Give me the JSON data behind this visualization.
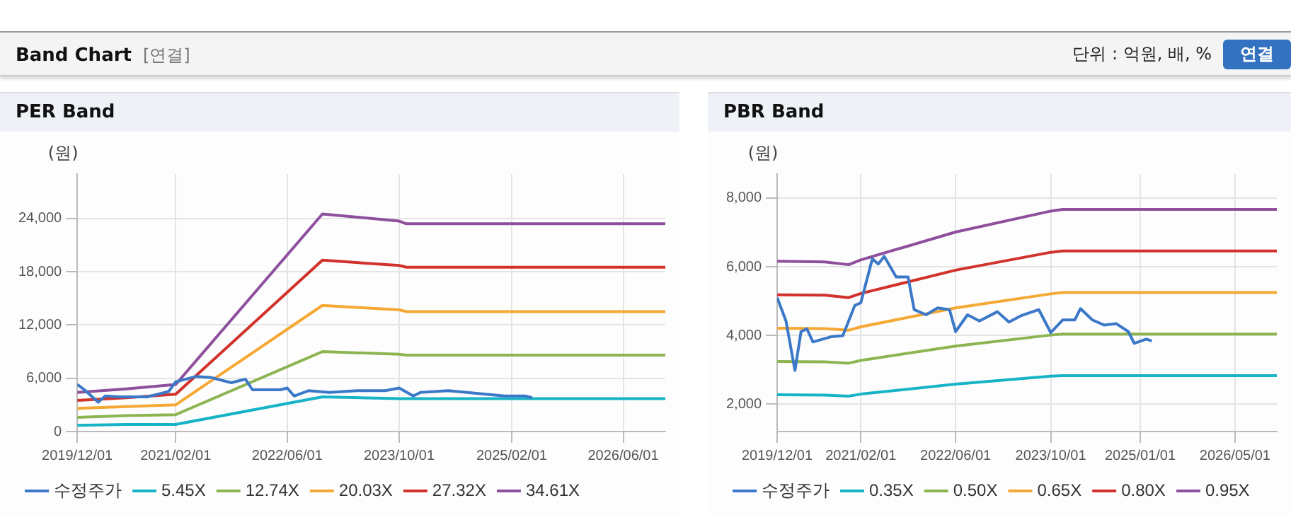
{
  "chart_data": [
    {
      "type": "line",
      "title": "PER Band",
      "ylabel": "(원)",
      "annotations": [
        "Band Chart",
        "[연결]"
      ],
      "x": [
        "2019-12-01",
        "2020-07-01",
        "2021-02-01",
        "2022-11-01",
        "2023-10-01",
        "2023-11-01",
        "2026-12-01"
      ],
      "series": [
        {
          "name": "수정주가",
          "color": "#3b78c8",
          "x": [
            "2019-12-01",
            "2020-01-01",
            "2020-03-01",
            "2020-04-01",
            "2020-06-01",
            "2020-10-01",
            "2021-01-01",
            "2021-02-01",
            "2021-05-01",
            "2021-07-01",
            "2021-10-01",
            "2021-12-01",
            "2022-01-01",
            "2022-05-01",
            "2022-06-01",
            "2022-07-01",
            "2022-09-01",
            "2022-12-01",
            "2023-04-01",
            "2023-08-01",
            "2023-10-01",
            "2023-12-01",
            "2024-01-01",
            "2024-05-01",
            "2024-09-01",
            "2025-01-01",
            "2025-04-01",
            "2025-05-01"
          ],
          "values": [
            5300,
            4700,
            3300,
            4000,
            3900,
            3900,
            4500,
            5600,
            6200,
            6100,
            5500,
            5900,
            4700,
            4700,
            4900,
            4000,
            4600,
            4400,
            4600,
            4600,
            4900,
            4000,
            4400,
            4600,
            4300,
            4000,
            4000,
            3800
          ]
        },
        {
          "name": "5.45X",
          "color": "#17b3c6",
          "values": [
            700,
            800,
            800,
            3900,
            3700,
            3700,
            3700
          ]
        },
        {
          "name": "12.74X",
          "color": "#8cb552",
          "values": [
            1600,
            1800,
            1900,
            9000,
            8700,
            8600,
            8600
          ]
        },
        {
          "name": "20.03X",
          "color": "#f5a833",
          "values": [
            2600,
            2800,
            3000,
            14200,
            13700,
            13500,
            13500
          ]
        },
        {
          "name": "27.32X",
          "color": "#d1322b",
          "values": [
            3500,
            3800,
            4200,
            19300,
            18700,
            18500,
            18500
          ]
        },
        {
          "name": "34.61X",
          "color": "#8e4f9c",
          "values": [
            4400,
            4800,
            5300,
            24500,
            23700,
            23400,
            23400
          ]
        }
      ],
      "xlim": [
        "2019-12-01",
        "2026-12-01"
      ],
      "xticks": [
        {
          "value": "2019-12-01",
          "label": "2019/12/01"
        },
        {
          "value": "2021-02-01",
          "label": "2021/02/01"
        },
        {
          "value": "2022-06-01",
          "label": "2022/06/01"
        },
        {
          "value": "2023-10-01",
          "label": "2023/10/01"
        },
        {
          "value": "2025-02-01",
          "label": "2025/02/01"
        },
        {
          "value": "2026-06-01",
          "label": "2026/06/01"
        }
      ],
      "ylim": [
        0,
        29000
      ],
      "yticks": [
        0,
        {
          "value": 6000,
          "label": "6,000"
        },
        {
          "value": 12000,
          "label": "12,000"
        },
        {
          "value": 18000,
          "label": "18,000"
        },
        {
          "value": 24000,
          "label": "24,000"
        }
      ],
      "grid": true,
      "legend": "bottom",
      "marker": "none",
      "line_style": "solid"
    },
    {
      "type": "line",
      "title": "PBR Band",
      "ylabel": "(원)",
      "annotations": [
        "단위 : 억원, 배, %",
        "연결"
      ],
      "x": [
        "2019-12-01",
        "2020-08-01",
        "2020-12-01",
        "2021-02-01",
        "2022-06-01",
        "2023-10-01",
        "2023-12-01",
        "2026-12-01"
      ],
      "series": [
        {
          "name": "수정주가",
          "color": "#3b78c8",
          "x": [
            "2019-12-01",
            "2020-01-15",
            "2020-03-01",
            "2020-04-01",
            "2020-05-01",
            "2020-06-01",
            "2020-09-01",
            "2020-11-01",
            "2021-01-01",
            "2021-02-01",
            "2021-04-01",
            "2021-05-01",
            "2021-06-01",
            "2021-08-01",
            "2021-10-01",
            "2021-11-01",
            "2022-01-01",
            "2022-03-01",
            "2022-05-01",
            "2022-06-01",
            "2022-08-01",
            "2022-10-01",
            "2023-01-01",
            "2023-03-01",
            "2023-05-01",
            "2023-08-01",
            "2023-10-01",
            "2023-12-01",
            "2024-02-01",
            "2024-03-01",
            "2024-05-01",
            "2024-07-01",
            "2024-09-01",
            "2024-11-01",
            "2024-12-01",
            "2025-02-01",
            "2025-03-01"
          ],
          "values": [
            5100,
            4420,
            2980,
            4110,
            4190,
            3810,
            3960,
            3990,
            4870,
            4950,
            6230,
            6080,
            6300,
            5700,
            5700,
            4750,
            4600,
            4800,
            4750,
            4110,
            4600,
            4420,
            4690,
            4390,
            4570,
            4750,
            4080,
            4450,
            4450,
            4780,
            4450,
            4300,
            4340,
            4110,
            3770,
            3890,
            3840
          ]
        },
        {
          "name": "0.35X",
          "color": "#17b3c6",
          "values": [
            2270,
            2260,
            2230,
            2290,
            2580,
            2810,
            2830,
            2830
          ]
        },
        {
          "name": "0.50X",
          "color": "#8cb552",
          "values": [
            3240,
            3230,
            3190,
            3270,
            3690,
            4010,
            4040,
            4040
          ]
        },
        {
          "name": "0.65X",
          "color": "#f5a833",
          "values": [
            4210,
            4200,
            4150,
            4250,
            4800,
            5210,
            5250,
            5250
          ]
        },
        {
          "name": "0.80X",
          "color": "#d1322b",
          "values": [
            5180,
            5170,
            5100,
            5220,
            5900,
            6420,
            6460,
            6460
          ]
        },
        {
          "name": "0.95X",
          "color": "#8e4f9c",
          "values": [
            6160,
            6140,
            6060,
            6200,
            7010,
            7620,
            7670,
            7670
          ]
        }
      ],
      "xlim": [
        "2019-12-01",
        "2026-12-01"
      ],
      "xticks": [
        {
          "value": "2019-12-01",
          "label": "2019/12/01"
        },
        {
          "value": "2021-02-01",
          "label": "2021/02/01"
        },
        {
          "value": "2022-06-01",
          "label": "2022/06/01"
        },
        {
          "value": "2023-10-01",
          "label": "2023/10/01"
        },
        {
          "value": "2025-01-01",
          "label": "2025/01/01"
        },
        {
          "value": "2026-05-01",
          "label": "2026/05/01"
        }
      ],
      "ylim": [
        1200,
        8700
      ],
      "yticks": [
        {
          "value": 2000,
          "label": "2,000"
        },
        {
          "value": 4000,
          "label": "4,000"
        },
        {
          "value": 6000,
          "label": "6,000"
        },
        {
          "value": 8000,
          "label": "8,000"
        }
      ],
      "grid": true,
      "legend": "bottom",
      "marker": "none",
      "line_style": "solid"
    }
  ]
}
